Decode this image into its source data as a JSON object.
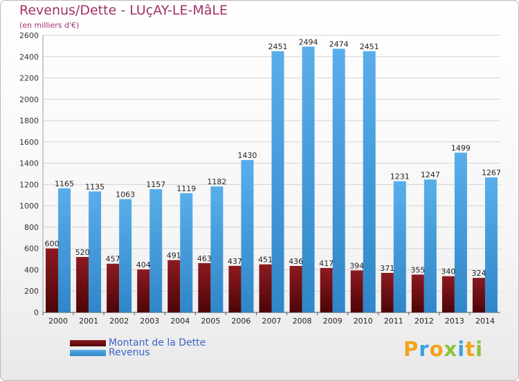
{
  "title": "Revenus/Dette - LUçAY-LE-MâLE",
  "subtitle": "(en milliers d'€)",
  "legend": [
    {
      "label": "Montant de la Dette",
      "color": "#6b0a10"
    },
    {
      "label": "Revenus",
      "color": "#3d97da"
    }
  ],
  "logo": {
    "text": "Proxiti",
    "colors": [
      "#f2a21b",
      "#3aa0de",
      "#8cc13f"
    ]
  },
  "chart_data": {
    "type": "bar",
    "title": "Revenus/Dette - LUçAY-LE-MâLE",
    "ylabel": "(en milliers d'€)",
    "xlabel": "",
    "ylim": [
      0,
      2600
    ],
    "yticks": [
      0,
      200,
      400,
      600,
      800,
      1000,
      1200,
      1400,
      1600,
      1800,
      2000,
      2200,
      2400,
      2600
    ],
    "grid": true,
    "legend_position": "bottom-left",
    "categories": [
      "2000",
      "2001",
      "2002",
      "2003",
      "2004",
      "2005",
      "2006",
      "2007",
      "2008",
      "2009",
      "2010",
      "2011",
      "2012",
      "2013",
      "2014"
    ],
    "series": [
      {
        "name": "Montant de la Dette",
        "color": "#6b0a10",
        "values": [
          600,
          520,
          457,
          404,
          491,
          463,
          437,
          451,
          436,
          417,
          394,
          371,
          355,
          340,
          324
        ]
      },
      {
        "name": "Revenus",
        "color": "#3d97da",
        "values": [
          1165,
          1135,
          1063,
          1157,
          1119,
          1182,
          1430,
          2451,
          2494,
          2474,
          2451,
          1231,
          1247,
          1499,
          1267
        ]
      }
    ]
  }
}
